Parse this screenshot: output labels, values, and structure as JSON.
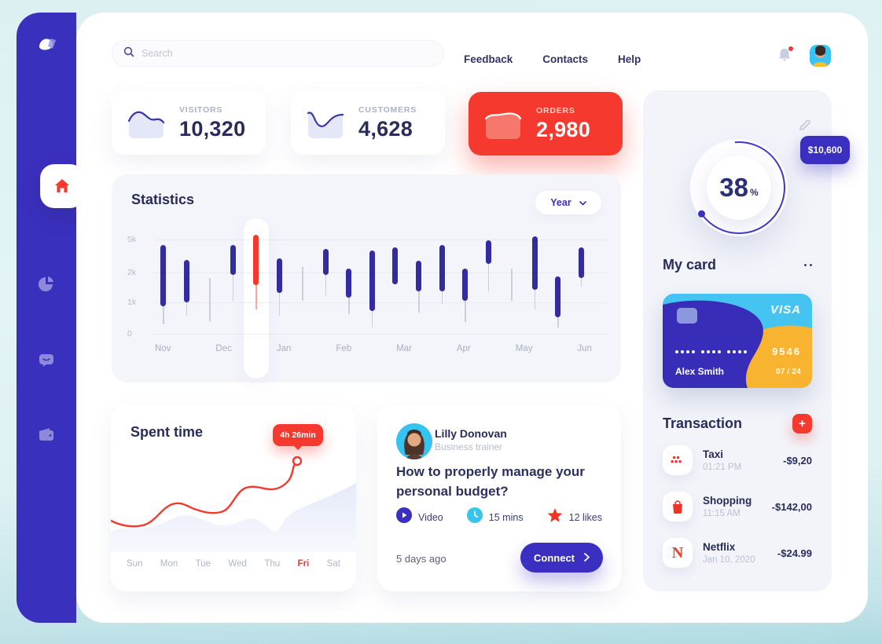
{
  "colors": {
    "accent_red": "#F5392E",
    "accent_indigo": "#3A2FC1",
    "sidebar_bg": "#3A30BE",
    "navy_text": "#272C5A",
    "card_bg": "#F4F5FB",
    "cc_cyan": "#45C4F1",
    "cc_yellow": "#F8B431",
    "cc_indigo": "#382DB8"
  },
  "header": {
    "search_placeholder": "Search",
    "nav": [
      "Feedback",
      "Contacts",
      "Help"
    ]
  },
  "sidebar": {
    "items": [
      {
        "name": "home",
        "active": true
      },
      {
        "name": "pie-chart",
        "active": false
      },
      {
        "name": "messages",
        "active": false
      },
      {
        "name": "wallet",
        "active": false
      }
    ]
  },
  "stat_cards": [
    {
      "label": "VISITORS",
      "value": "10,320",
      "accent": false
    },
    {
      "label": "CUSTOMERS",
      "value": "4,628",
      "accent": false
    },
    {
      "label": "ORDERS",
      "value": "2,980",
      "accent": true
    }
  ],
  "statistics": {
    "title": "Statistics",
    "period": "Year",
    "chart_data": {
      "type": "bar",
      "subtype": "floating-range-bars",
      "title": "Statistics",
      "ylabel": "",
      "axis_ticks": [
        "5k",
        "2k",
        "1k",
        "0"
      ],
      "categories": [
        "Nov",
        "Dec",
        "Jan",
        "Feb",
        "Mar",
        "Apr",
        "May",
        "Jun"
      ],
      "highlight_index": 4,
      "bars": [
        {
          "high": 4.1,
          "low": 0.85,
          "wick": 0.28,
          "type": "bar"
        },
        {
          "high": 2.8,
          "low": 0.95,
          "wick": 0.55,
          "type": "bar"
        },
        {
          "high": 1.7,
          "low": 0.38,
          "wick": 0.38,
          "type": "wick"
        },
        {
          "high": 4.1,
          "low": 1.8,
          "wick": 1.0,
          "type": "bar"
        },
        {
          "high": 5.1,
          "low": 1.5,
          "wick": 0.75,
          "type": "highlight"
        },
        {
          "high": 2.9,
          "low": 1.25,
          "wick": 0.55,
          "type": "bar"
        },
        {
          "high": 2.1,
          "low": 1.0,
          "wick": 1.0,
          "type": "wick"
        },
        {
          "high": 3.8,
          "low": 1.8,
          "wick": 1.15,
          "type": "bar"
        },
        {
          "high": 2.0,
          "low": 1.1,
          "wick": 0.6,
          "type": "bar"
        },
        {
          "high": 3.6,
          "low": 0.7,
          "wick": 0.2,
          "type": "bar"
        },
        {
          "high": 3.9,
          "low": 1.5,
          "wick": 1.5,
          "type": "bar"
        },
        {
          "high": 2.7,
          "low": 1.3,
          "wick": 0.65,
          "type": "bar"
        },
        {
          "high": 4.1,
          "low": 1.3,
          "wick": 0.9,
          "type": "bar"
        },
        {
          "high": 2.0,
          "low": 1.0,
          "wick": 0.35,
          "type": "bar"
        },
        {
          "high": 4.6,
          "low": 2.4,
          "wick": 1.3,
          "type": "bar"
        },
        {
          "high": 2.0,
          "low": 1.0,
          "wick": 1.0,
          "type": "wick"
        },
        {
          "high": 4.9,
          "low": 1.35,
          "wick": 0.75,
          "type": "bar"
        },
        {
          "high": 1.75,
          "low": 0.5,
          "wick": 0.2,
          "type": "bar"
        },
        {
          "high": 3.9,
          "low": 1.7,
          "wick": 1.45,
          "type": "bar"
        }
      ]
    }
  },
  "gauge": {
    "percent": "38",
    "unit": "%",
    "badge": "$10,600"
  },
  "my_card": {
    "title": "My card",
    "brand": "VISA",
    "number_last4": "9546",
    "holder": "Alex Smith",
    "expiry": "07 / 24"
  },
  "spent_time": {
    "title": "Spent time",
    "tooltip": "4h 26min",
    "active_day": "Fri",
    "chart_data": {
      "type": "line",
      "title": "Spent time",
      "categories": [
        "Sun",
        "Mon",
        "Tue",
        "Wed",
        "Thu",
        "Fri",
        "Sat"
      ],
      "values_hours": [
        1.0,
        2.2,
        1.9,
        3.0,
        2.9,
        4.43,
        null
      ],
      "annotation": {
        "label": "4h 26min",
        "x": "Fri"
      }
    }
  },
  "post": {
    "author": "Lilly Donovan",
    "role": "Business trainer",
    "title": "How to properly manage your personal budget?",
    "meta": [
      {
        "icon": "play-icon",
        "label": "Video"
      },
      {
        "icon": "clock-icon",
        "label": "15 mins"
      },
      {
        "icon": "star-icon",
        "label": "12 likes"
      }
    ],
    "age": "5 days ago",
    "cta": "Connect"
  },
  "transactions": {
    "title": "Transaction",
    "add_glyph": "+",
    "items": [
      {
        "icon": "taxi",
        "name": "Taxi",
        "time": "01:21 PM",
        "amount": "-$9,20"
      },
      {
        "icon": "bag",
        "name": "Shopping",
        "time": "11:15 AM",
        "amount": "-$142,00"
      },
      {
        "icon": "netflix",
        "name": "Netflix",
        "time": "Jan 10, 2020",
        "amount": "-$24.99"
      }
    ]
  }
}
